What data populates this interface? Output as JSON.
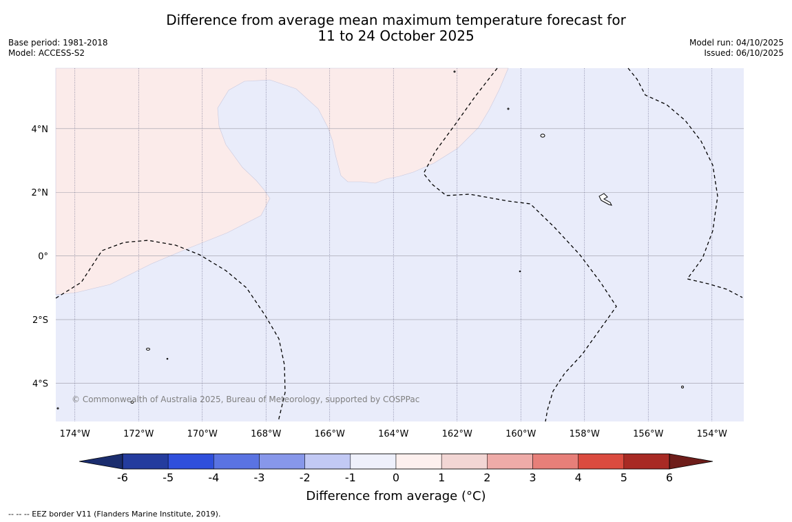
{
  "title": {
    "line1": "Difference from average mean maximum temperature forecast for",
    "line2": "11 to 24 October 2025"
  },
  "meta_left": {
    "base_period": "Base period: 1981-2018",
    "model": "Model: ACCESS-S2"
  },
  "meta_right": {
    "model_run": "Model run: 04/10/2025",
    "issued": "Issued: 06/10/2025"
  },
  "map": {
    "lon_range": [
      -174.6,
      -153.0
    ],
    "lat_range": [
      -5.2,
      5.9
    ],
    "lat_labels": [
      {
        "lat": 4,
        "label": "4°N"
      },
      {
        "lat": 2,
        "label": "2°N"
      },
      {
        "lat": 0,
        "label": "0°"
      },
      {
        "lat": -2,
        "label": "2°S"
      },
      {
        "lat": -4,
        "label": "4°S"
      }
    ],
    "lon_labels": [
      {
        "lon": -174,
        "label": "174°W"
      },
      {
        "lon": -172,
        "label": "172°W"
      },
      {
        "lon": -170,
        "label": "170°W"
      },
      {
        "lon": -168,
        "label": "168°W"
      },
      {
        "lon": -166,
        "label": "166°W"
      },
      {
        "lon": -164,
        "label": "164°W"
      },
      {
        "lon": -162,
        "label": "162°W"
      },
      {
        "lon": -160,
        "label": "160°W"
      },
      {
        "lon": -158,
        "label": "158°W"
      },
      {
        "lon": -156,
        "label": "156°W"
      },
      {
        "lon": -154,
        "label": "154°W"
      }
    ],
    "background_color": "#e9ecfa",
    "warm_region_color": "#fbebea",
    "warm_region_label": "0 to 1",
    "cool_region_label": "-1 to 0",
    "copyright": "© Commonwealth of Australia 2025, Bureau of Meteorology, supported by COSPPac"
  },
  "colorbar": {
    "title": "Difference from average (°C)",
    "ticks": [
      "-6",
      "-5",
      "-4",
      "-3",
      "-2",
      "-1",
      "0",
      "1",
      "2",
      "3",
      "4",
      "5",
      "6"
    ],
    "colors": [
      "#243c9e",
      "#2f4fdc",
      "#5a73e2",
      "#8797ea",
      "#c2c9f4",
      "#eef0fb",
      "#fdf0ee",
      "#f2d6d4",
      "#eeaba8",
      "#e77f79",
      "#db4b3f",
      "#a82a24"
    ],
    "under_color": "#1b2d6e",
    "over_color": "#6e1d1a"
  },
  "footer": "--  --  -- EEZ border V11 (Flanders Marine Institute, 2019)."
}
